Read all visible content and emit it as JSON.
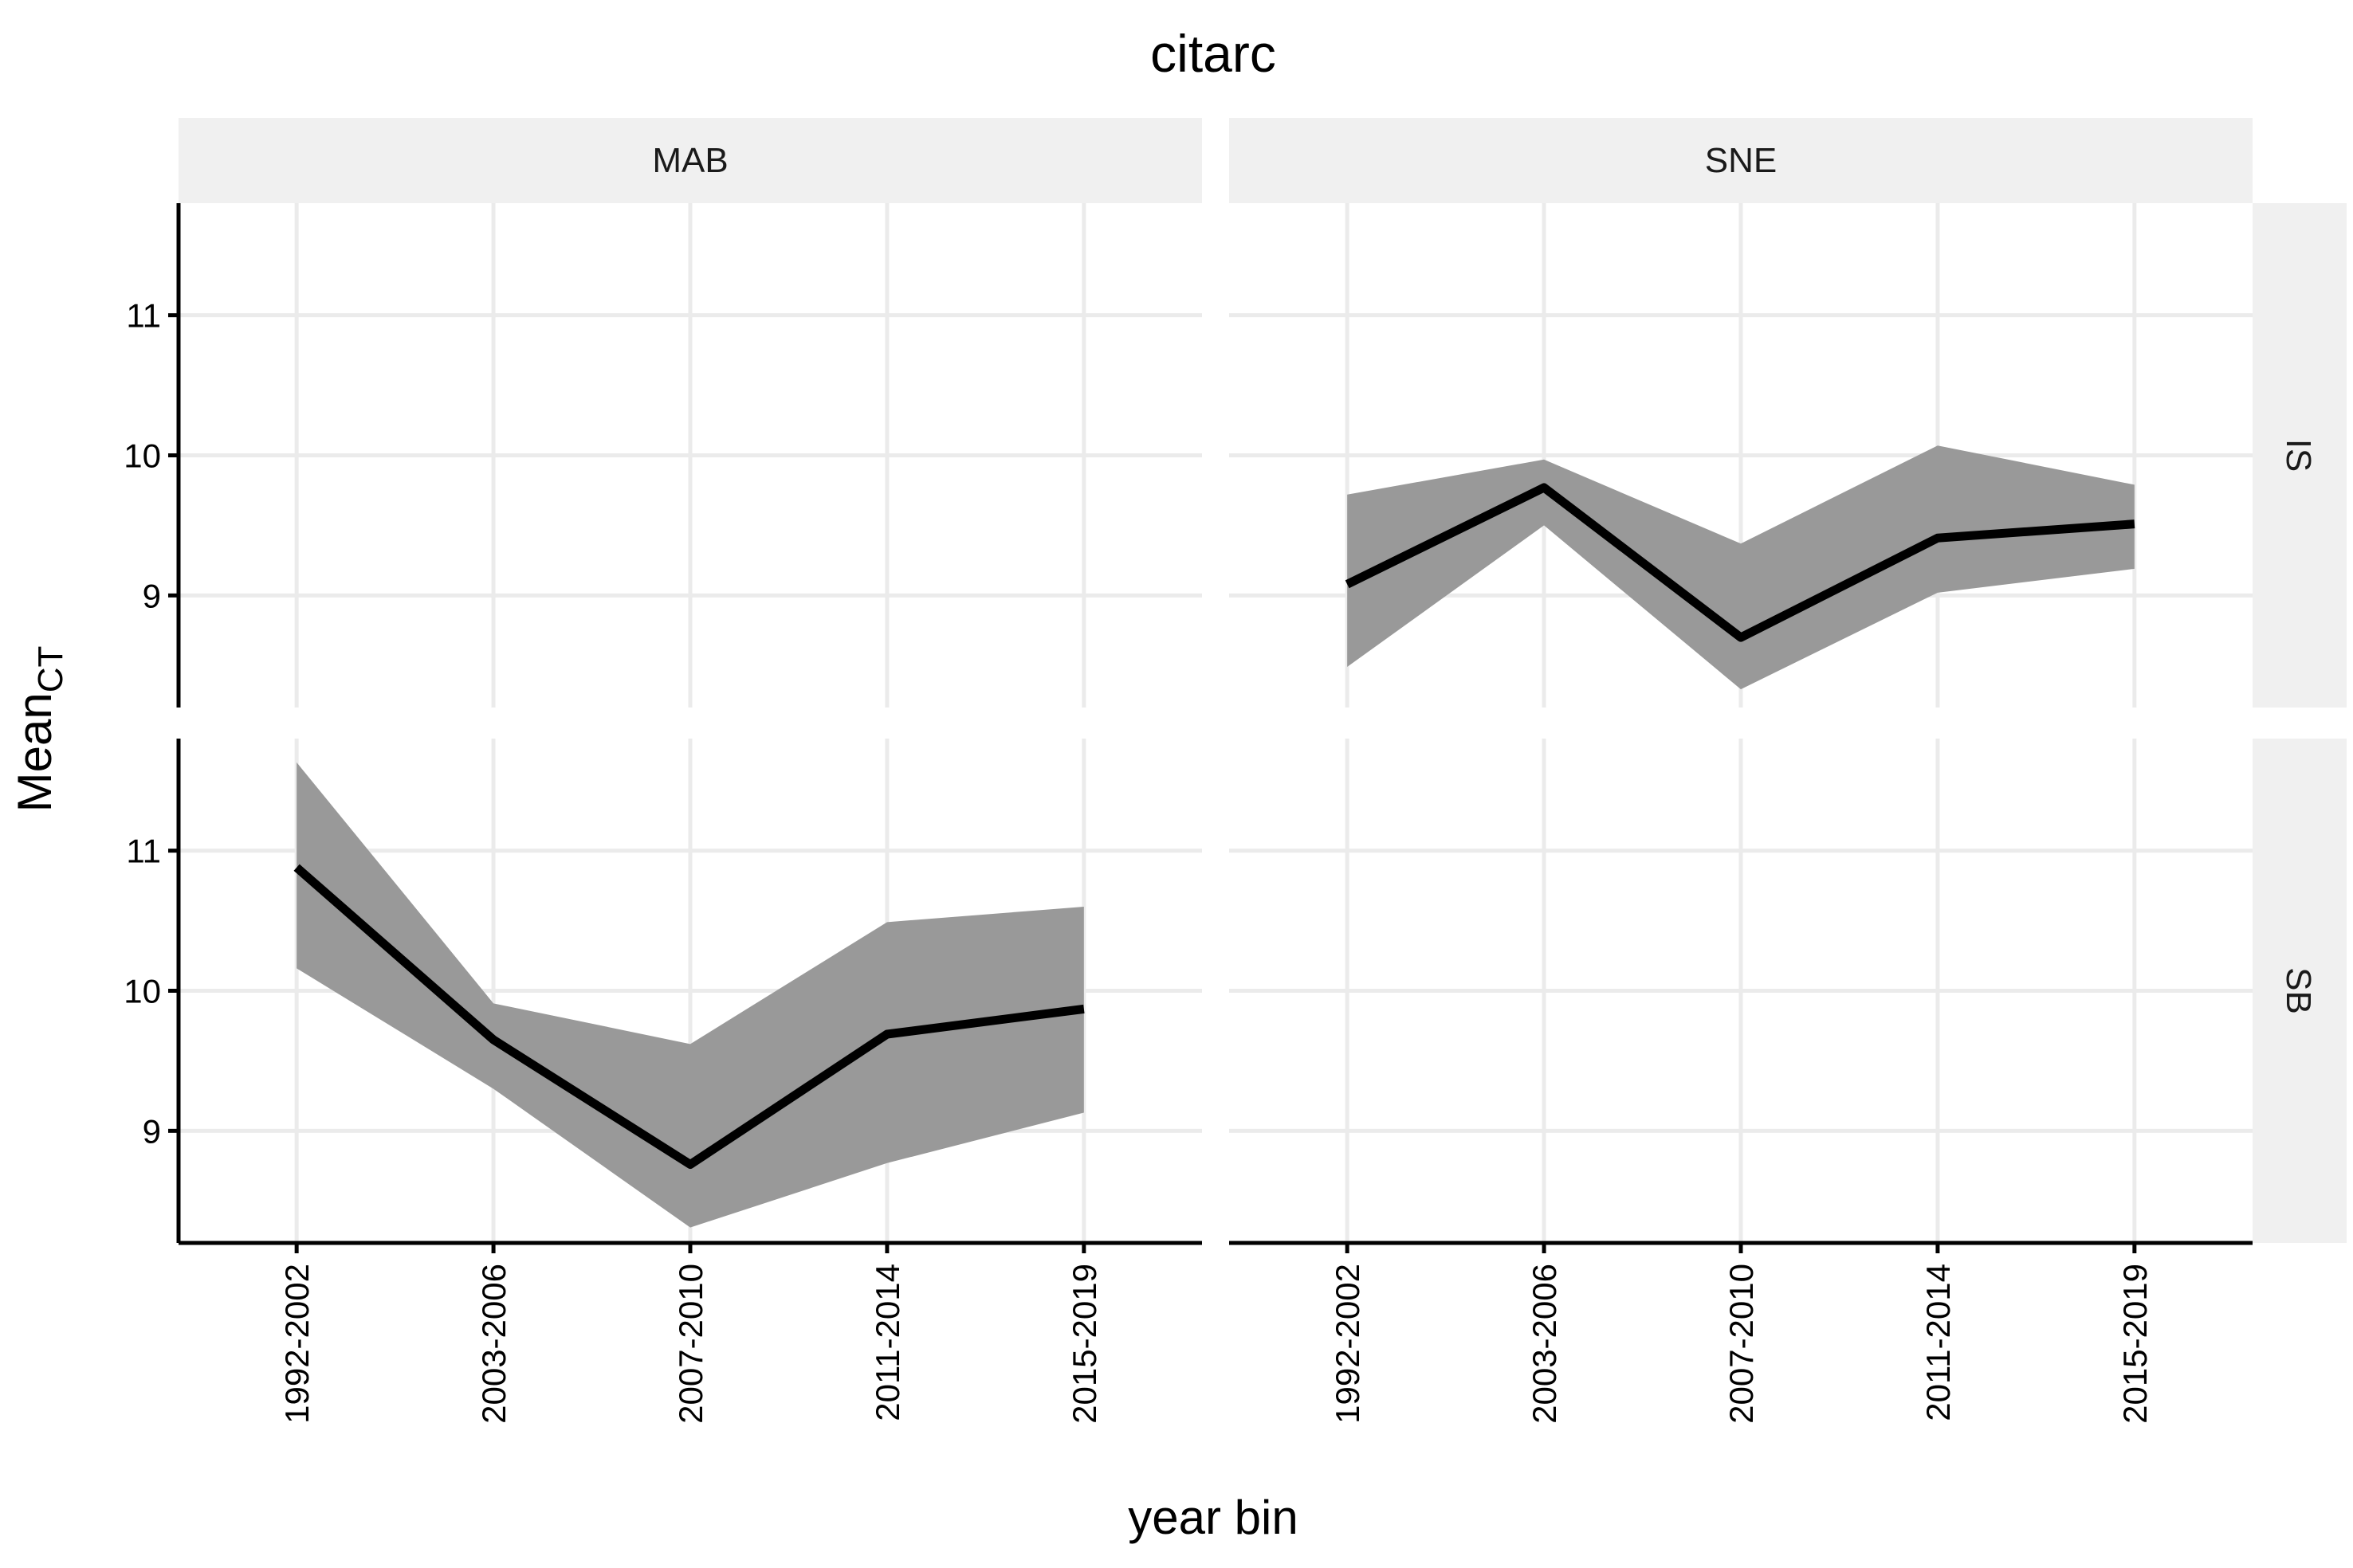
{
  "chart_data": {
    "type": "line",
    "title": "citarc",
    "xlabel": "year bin",
    "ylabel_main": "Mean",
    "ylabel_sub": "CT",
    "categories": [
      "1992-2002",
      "2003-2006",
      "2007-2010",
      "2011-2014",
      "2015-2019"
    ],
    "y_ticks": [
      9,
      10,
      11
    ],
    "ylim": [
      8.2,
      11.8
    ],
    "grid": true,
    "legend": "none",
    "col_facets": [
      "MAB",
      "SNE"
    ],
    "row_facets": [
      "IS",
      "SB"
    ],
    "colors": {
      "line": "#000000",
      "ribbon": "#999999",
      "strip": "#f0f0f0",
      "grid": "#ebebeb"
    },
    "panels": [
      {
        "col": "MAB",
        "row": "IS",
        "mean": [],
        "lower": [],
        "upper": []
      },
      {
        "col": "SNE",
        "row": "IS",
        "mean": [
          9.08,
          9.77,
          8.7,
          9.41,
          9.51
        ],
        "lower": [
          8.49,
          9.5,
          8.33,
          9.02,
          9.19
        ],
        "upper": [
          9.72,
          9.97,
          9.37,
          10.07,
          9.79
        ]
      },
      {
        "col": "MAB",
        "row": "SB",
        "mean": [
          10.88,
          9.65,
          8.76,
          9.69,
          9.87
        ],
        "lower": [
          10.16,
          9.3,
          8.31,
          8.77,
          9.13
        ],
        "upper": [
          11.63,
          9.91,
          9.62,
          10.49,
          10.6
        ]
      },
      {
        "col": "SNE",
        "row": "SB",
        "mean": [],
        "lower": [],
        "upper": []
      }
    ]
  }
}
